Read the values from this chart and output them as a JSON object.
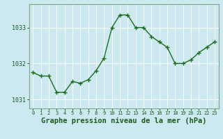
{
  "x": [
    0,
    1,
    2,
    3,
    4,
    5,
    6,
    7,
    8,
    9,
    10,
    11,
    12,
    13,
    14,
    15,
    16,
    17,
    18,
    19,
    20,
    21,
    22,
    23
  ],
  "y": [
    1031.75,
    1031.65,
    1031.65,
    1031.2,
    1031.2,
    1031.5,
    1031.45,
    1031.55,
    1031.8,
    1032.15,
    1033.0,
    1033.35,
    1033.35,
    1033.0,
    1033.0,
    1032.75,
    1032.6,
    1032.45,
    1032.0,
    1032.0,
    1032.1,
    1032.3,
    1032.45,
    1032.6
  ],
  "line_color": "#1a6e1a",
  "marker": "+",
  "marker_size": 4,
  "marker_linewidth": 1.0,
  "background_color": "#cce8f0",
  "grid_color": "#ffffff",
  "xlabel": "Graphe pression niveau de la mer (hPa)",
  "xlabel_fontsize": 7.5,
  "tick_label_color": "#1a5c1a",
  "axis_label_color": "#1a5c1a",
  "ylim": [
    1030.75,
    1033.65
  ],
  "yticks": [
    1031,
    1032,
    1033
  ],
  "xlim": [
    -0.5,
    23.5
  ],
  "xticks": [
    0,
    1,
    2,
    3,
    4,
    5,
    6,
    7,
    8,
    9,
    10,
    11,
    12,
    13,
    14,
    15,
    16,
    17,
    18,
    19,
    20,
    21,
    22,
    23
  ],
  "linewidth": 1.0,
  "spine_color": "#7aaa7a"
}
